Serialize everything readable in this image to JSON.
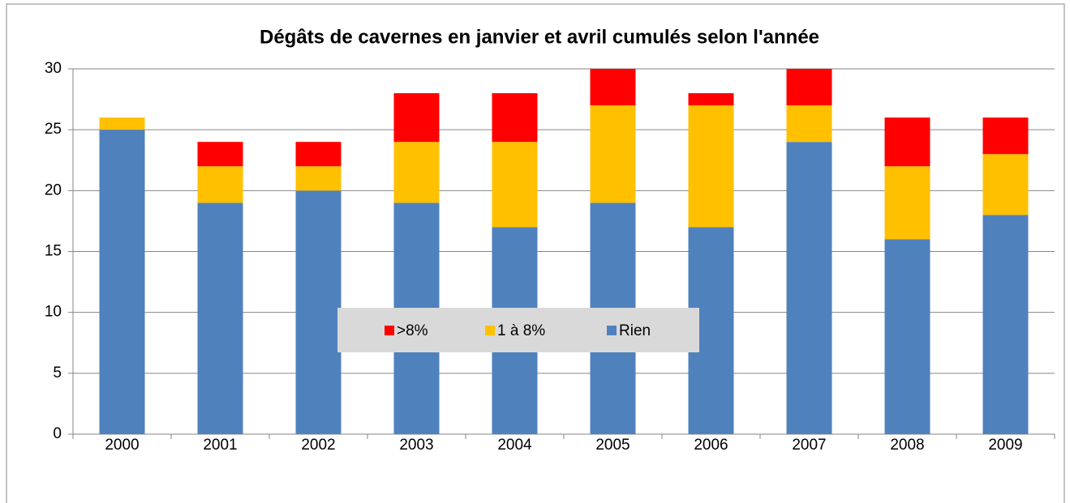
{
  "chart_data": {
    "type": "stacked_bar",
    "title": "Dégâts de cavernes en janvier et avril cumulés selon l'année",
    "categories": [
      "2000",
      "2001",
      "2002",
      "2003",
      "2004",
      "2005",
      "2006",
      "2007",
      "2008",
      "2009"
    ],
    "series": [
      {
        "name": "Rien",
        "color": "#4f81bd",
        "values": [
          25,
          19,
          20,
          19,
          17,
          19,
          17,
          24,
          16,
          18
        ]
      },
      {
        "name": "1 à 8%",
        "color": "#ffc000",
        "values": [
          1,
          3,
          2,
          5,
          7,
          8,
          10,
          3,
          6,
          5
        ]
      },
      {
        "name": ">8%",
        "color": "#ff0000",
        "values": [
          0,
          2,
          2,
          4,
          4,
          3,
          1,
          3,
          4,
          3
        ]
      }
    ],
    "ylim": [
      0,
      30
    ],
    "yticks": [
      0,
      5,
      10,
      15,
      20,
      25,
      30
    ],
    "grid": true,
    "legend": "center"
  }
}
